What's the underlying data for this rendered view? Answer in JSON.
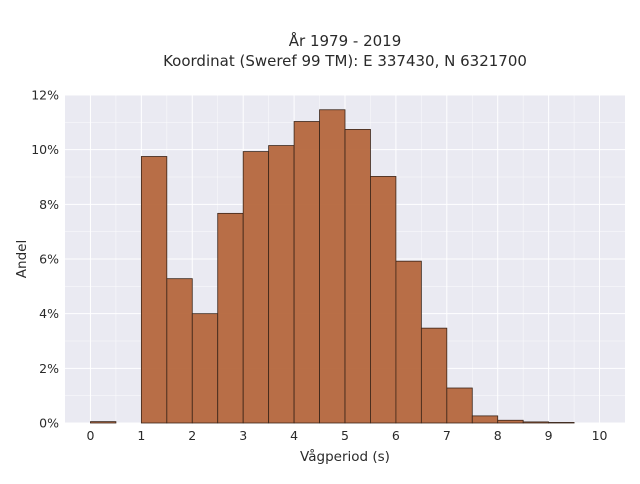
{
  "chart_data": {
    "type": "bar",
    "title": "År 1979 - 2019",
    "subtitle": "Koordinat (Sweref 99 TM): E 337430, N 6321700",
    "xlabel": "Vågperiod (s)",
    "ylabel": "Andel",
    "bin_width": 0.5,
    "bins": [
      {
        "x0": 0.0,
        "x1": 0.5,
        "value": 0.05
      },
      {
        "x0": 0.5,
        "x1": 1.0,
        "value": 0.0
      },
      {
        "x0": 1.0,
        "x1": 1.5,
        "value": 9.75
      },
      {
        "x0": 1.5,
        "x1": 2.0,
        "value": 5.28
      },
      {
        "x0": 2.0,
        "x1": 2.5,
        "value": 4.0
      },
      {
        "x0": 2.5,
        "x1": 3.0,
        "value": 7.67
      },
      {
        "x0": 3.0,
        "x1": 3.5,
        "value": 9.93
      },
      {
        "x0": 3.5,
        "x1": 4.0,
        "value": 10.15
      },
      {
        "x0": 4.0,
        "x1": 4.5,
        "value": 11.03
      },
      {
        "x0": 4.5,
        "x1": 5.0,
        "value": 11.46
      },
      {
        "x0": 5.0,
        "x1": 5.5,
        "value": 10.74
      },
      {
        "x0": 5.5,
        "x1": 6.0,
        "value": 9.02
      },
      {
        "x0": 6.0,
        "x1": 6.5,
        "value": 5.92
      },
      {
        "x0": 6.5,
        "x1": 7.0,
        "value": 3.47
      },
      {
        "x0": 7.0,
        "x1": 7.5,
        "value": 1.28
      },
      {
        "x0": 7.5,
        "x1": 8.0,
        "value": 0.26
      },
      {
        "x0": 8.0,
        "x1": 8.5,
        "value": 0.1
      },
      {
        "x0": 8.5,
        "x1": 9.0,
        "value": 0.04
      },
      {
        "x0": 9.0,
        "x1": 9.5,
        "value": 0.02
      },
      {
        "x0": 9.5,
        "x1": 10.0,
        "value": 0.0
      }
    ],
    "xlim": [
      -0.5,
      10.5
    ],
    "ylim": [
      0,
      12
    ],
    "x_ticks": [
      {
        "value": 0,
        "label": "0"
      },
      {
        "value": 1,
        "label": "1"
      },
      {
        "value": 2,
        "label": "2"
      },
      {
        "value": 3,
        "label": "3"
      },
      {
        "value": 4,
        "label": "4"
      },
      {
        "value": 5,
        "label": "5"
      },
      {
        "value": 6,
        "label": "6"
      },
      {
        "value": 7,
        "label": "7"
      },
      {
        "value": 8,
        "label": "8"
      },
      {
        "value": 9,
        "label": "9"
      },
      {
        "value": 10,
        "label": "10"
      }
    ],
    "y_ticks": [
      {
        "value": 0,
        "label": "0%"
      },
      {
        "value": 2,
        "label": "2%"
      },
      {
        "value": 4,
        "label": "4%"
      },
      {
        "value": 6,
        "label": "6%"
      },
      {
        "value": 8,
        "label": "8%"
      },
      {
        "value": 10,
        "label": "10%"
      },
      {
        "value": 12,
        "label": "12%"
      }
    ],
    "grid": true,
    "colors": {
      "bar_fill": "#b5673d",
      "bar_stroke": "#3a2418",
      "plot_background": "#eaeaf2",
      "grid": "#ffffff"
    }
  }
}
